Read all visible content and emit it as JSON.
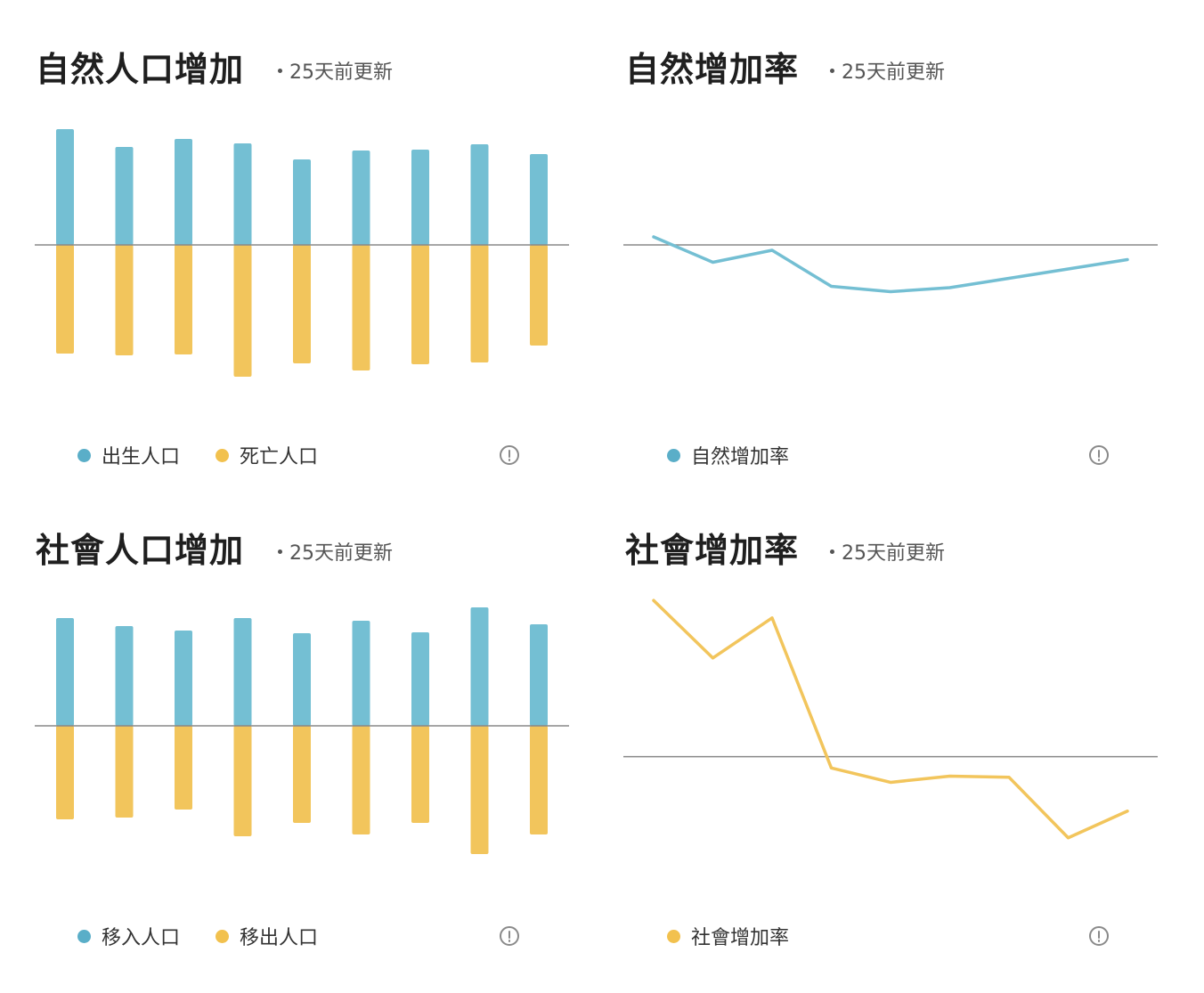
{
  "colors": {
    "blue": "#74bfd3",
    "yellow": "#f2c55c",
    "axis": "#888888",
    "legend_blue": "#5aaec8",
    "legend_yellow": "#f2c14e"
  },
  "panels": [
    {
      "id": "natural-increase",
      "title": "自然人口增加",
      "updated": "25天前更新",
      "legend": [
        {
          "label": "出生人口",
          "color": "#5aaec8"
        },
        {
          "label": "死亡人口",
          "color": "#f2c14e"
        }
      ],
      "info_icon": "info-icon"
    },
    {
      "id": "natural-rate",
      "title": "自然增加率",
      "updated": "25天前更新",
      "legend": [
        {
          "label": "自然增加率",
          "color": "#5aaec8"
        }
      ],
      "info_icon": "info-icon"
    },
    {
      "id": "social-increase",
      "title": "社會人口增加",
      "updated": "25天前更新",
      "legend": [
        {
          "label": "移入人口",
          "color": "#5aaec8"
        },
        {
          "label": "移出人口",
          "color": "#f2c14e"
        }
      ],
      "info_icon": "info-icon"
    },
    {
      "id": "social-rate",
      "title": "社會增加率",
      "updated": "25天前更新",
      "legend": [
        {
          "label": "社會增加率",
          "color": "#f2c14e"
        }
      ],
      "info_icon": "info-icon"
    }
  ],
  "chart_data": [
    {
      "type": "bar",
      "title": "自然人口增加",
      "series": [
        {
          "name": "出生人口",
          "values": [
            130,
            110,
            119,
            114,
            96,
            106,
            107,
            113,
            102
          ]
        },
        {
          "name": "死亡人口",
          "values": [
            -122,
            -124,
            -123,
            -148,
            -133,
            -141,
            -134,
            -132,
            -113
          ]
        }
      ],
      "ylim": [
        -150,
        150
      ],
      "grid": false,
      "legend_position": "bottom-left"
    },
    {
      "type": "line",
      "title": "自然增加率",
      "series": [
        {
          "name": "自然增加率",
          "values": [
            0.6,
            -1.3,
            -0.4,
            -3.1,
            -3.5,
            -3.2,
            -2.5,
            -1.8,
            -1.1
          ]
        }
      ],
      "ylim": [
        -10,
        10
      ],
      "grid": false,
      "legend_position": "bottom-left"
    },
    {
      "type": "bar",
      "title": "社會人口增加",
      "series": [
        {
          "name": "移入人口",
          "values": [
            121,
            112,
            107,
            121,
            104,
            118,
            105,
            133,
            114
          ]
        },
        {
          "name": "移出人口",
          "values": [
            -105,
            -103,
            -94,
            -124,
            -109,
            -122,
            -109,
            -144,
            -122
          ]
        }
      ],
      "ylim": [
        -150,
        150
      ],
      "grid": false,
      "legend_position": "bottom-left"
    },
    {
      "type": "line",
      "title": "社會增加率",
      "series": [
        {
          "name": "社會增加率",
          "values": [
            15.2,
            9.6,
            13.5,
            -1.1,
            -2.5,
            -1.9,
            -2.0,
            -7.9,
            -5.3
          ]
        }
      ],
      "ylim": [
        -10,
        16
      ],
      "grid": false,
      "legend_position": "bottom-left"
    }
  ]
}
